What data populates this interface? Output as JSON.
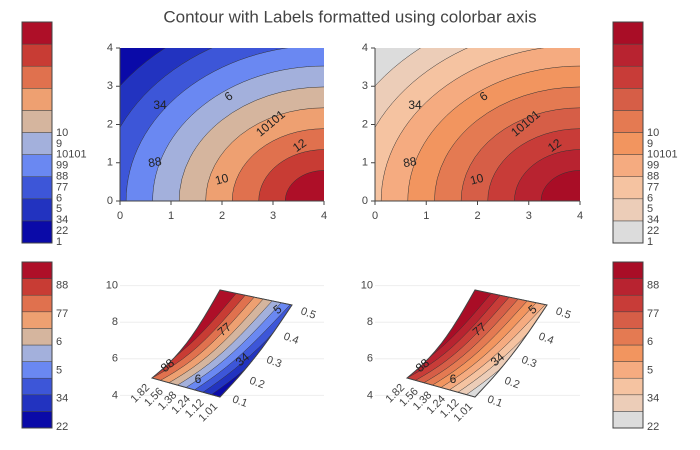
{
  "title": "Contour with Labels formatted using colorbar axis",
  "chart_data": [
    {
      "type": "contour",
      "xlim": [
        0,
        4
      ],
      "ylim": [
        0,
        4
      ],
      "xticks": [
        0,
        1,
        2,
        3,
        4
      ],
      "yticks": [
        0,
        1,
        2,
        3,
        4
      ],
      "colorscale": [
        "#0a0aa8",
        "#2233c0",
        "#3d56d8",
        "#6a88f2",
        "#a3b0dc",
        "#d5b59e",
        "#eea071",
        "#e0714e",
        "#c83c34",
        "#ae0f28"
      ],
      "colorbar_labels": [
        "1",
        "22",
        "34",
        "5",
        "6",
        "77",
        "88",
        "99",
        "10101",
        "9",
        "10"
      ],
      "contour_labels": [
        "34",
        "6",
        "10101",
        "12",
        "88",
        "10"
      ]
    },
    {
      "type": "contour",
      "xlim": [
        0,
        4
      ],
      "ylim": [
        0,
        4
      ],
      "xticks": [
        0,
        1,
        2,
        3,
        4
      ],
      "yticks": [
        0,
        1,
        2,
        3,
        4
      ],
      "colorscale": [
        "#dcdcdc",
        "#eccdb8",
        "#f5c3a1",
        "#f5ab80",
        "#f2955f",
        "#e47a52",
        "#d65e47",
        "#c83c38",
        "#b82330",
        "#a90d26"
      ],
      "colorbar_labels": [
        "1",
        "22",
        "34",
        "5",
        "6",
        "77",
        "88",
        "99",
        "10101",
        "9",
        "10"
      ],
      "contour_labels": [
        "34",
        "6",
        "10101",
        "12",
        "88",
        "10"
      ]
    },
    {
      "type": "contourcarpet",
      "ylim": [
        3.8,
        10.2
      ],
      "yticks": [
        4,
        6,
        8,
        10
      ],
      "grid": true,
      "a_ticks": [
        1.82,
        1.56,
        1.38,
        1.24,
        1.12,
        1.01
      ],
      "b_ticks": [
        0.1,
        0.2,
        0.3,
        0.4,
        0.5
      ],
      "colorscale": [
        "#0a0aa8",
        "#2233c0",
        "#3d56d8",
        "#6a88f2",
        "#a3b0dc",
        "#d5b59e",
        "#eea071",
        "#e0714e",
        "#c83c34",
        "#ae0f28"
      ],
      "colorbar_labels": [
        "22",
        "34",
        "5",
        "6",
        "77",
        "88"
      ],
      "contour_labels": [
        "88",
        "77",
        "6",
        "34",
        "5"
      ]
    },
    {
      "type": "contourcarpet",
      "ylim": [
        3.8,
        10.2
      ],
      "yticks": [
        4,
        6,
        8,
        10
      ],
      "grid": true,
      "a_ticks": [
        1.82,
        1.56,
        1.38,
        1.24,
        1.12,
        1.01
      ],
      "b_ticks": [
        0.1,
        0.2,
        0.3,
        0.4,
        0.5
      ],
      "colorscale": [
        "#dcdcdc",
        "#eccdb8",
        "#f5c3a1",
        "#f5ab80",
        "#f2955f",
        "#e47a52",
        "#d65e47",
        "#c83c38",
        "#b82330",
        "#a90d26"
      ],
      "colorbar_labels": [
        "22",
        "34",
        "5",
        "6",
        "77",
        "88"
      ],
      "contour_labels": [
        "88",
        "77",
        "6",
        "34",
        "5"
      ]
    }
  ]
}
